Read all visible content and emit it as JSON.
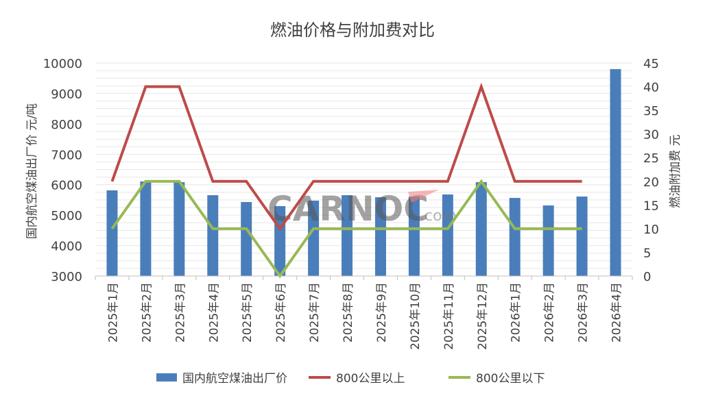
{
  "chart_data": {
    "type": "bar+line",
    "title": "燃油价格与附加费对比",
    "ylabel_left": "国内航空煤油出厂价  元/吨",
    "ylabel_right": "燃油附加费  元",
    "ylim_left": [
      3000,
      10000
    ],
    "yticks_left": [
      3000,
      4000,
      5000,
      6000,
      7000,
      8000,
      9000,
      10000
    ],
    "ylim_right": [
      0,
      45
    ],
    "yticks_right": [
      0,
      5,
      10,
      15,
      20,
      25,
      30,
      35,
      40,
      45
    ],
    "grid": true,
    "legend": "bottom",
    "categories": [
      "2025年1月",
      "2025年2月",
      "2025年3月",
      "2025年4月",
      "2025年5月",
      "2025年6月",
      "2025年7月",
      "2025年8月",
      "2025年9月",
      "2025年10月",
      "2025年11月",
      "2025年12月",
      "2026年1月",
      "2026年2月",
      "2026年3月",
      "2026年4月"
    ],
    "series": [
      {
        "name": "国内航空煤油出厂价",
        "type": "bar",
        "axis": "left",
        "color": "#4A7EBB",
        "values": [
          5815,
          6108,
          6085,
          5657,
          5432,
          5297,
          5477,
          5657,
          5590,
          5612,
          5680,
          6085,
          5567,
          5320,
          5612,
          9800
        ]
      },
      {
        "name": "800公里以上",
        "type": "line",
        "axis": "right",
        "color": "#BE4B48",
        "values": [
          20,
          40,
          40,
          20,
          20,
          10,
          20,
          20,
          20,
          20,
          20,
          40,
          20,
          20,
          20,
          null
        ]
      },
      {
        "name": "800公里以下",
        "type": "line",
        "axis": "right",
        "color": "#98B954",
        "values": [
          10,
          20,
          20,
          10,
          10,
          0,
          10,
          10,
          10,
          10,
          10,
          20,
          10,
          10,
          10,
          null
        ]
      }
    ]
  },
  "watermark": "CARNOC.com"
}
